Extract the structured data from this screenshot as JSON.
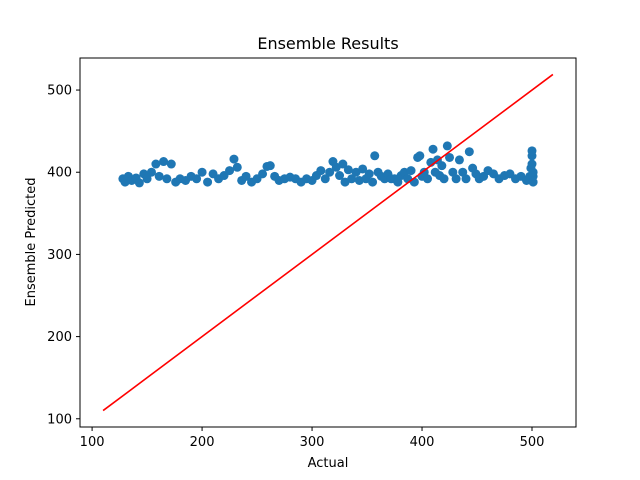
{
  "chart_data": {
    "type": "scatter",
    "title": "Ensemble Results",
    "xlabel": "Actual",
    "ylabel": "Ensemble Predicted",
    "xlim": [
      89,
      540
    ],
    "ylim": [
      90,
      539
    ],
    "xticks": [
      100,
      200,
      300,
      400,
      500
    ],
    "yticks": [
      100,
      200,
      300,
      400,
      500
    ],
    "grid": false,
    "colors": {
      "scatter": "#1f77b4",
      "line": "#ff0000"
    },
    "scatter_points": [
      [
        128,
        392
      ],
      [
        130,
        388
      ],
      [
        133,
        395
      ],
      [
        136,
        390
      ],
      [
        140,
        393
      ],
      [
        143,
        387
      ],
      [
        147,
        398
      ],
      [
        150,
        392
      ],
      [
        154,
        400
      ],
      [
        158,
        410
      ],
      [
        161,
        395
      ],
      [
        165,
        413
      ],
      [
        168,
        392
      ],
      [
        172,
        410
      ],
      [
        176,
        388
      ],
      [
        180,
        392
      ],
      [
        185,
        390
      ],
      [
        190,
        395
      ],
      [
        195,
        392
      ],
      [
        200,
        400
      ],
      [
        205,
        388
      ],
      [
        210,
        398
      ],
      [
        215,
        392
      ],
      [
        220,
        396
      ],
      [
        225,
        402
      ],
      [
        229,
        416
      ],
      [
        232,
        406
      ],
      [
        236,
        390
      ],
      [
        240,
        395
      ],
      [
        245,
        388
      ],
      [
        250,
        392
      ],
      [
        255,
        398
      ],
      [
        259,
        407
      ],
      [
        262,
        408
      ],
      [
        266,
        395
      ],
      [
        270,
        390
      ],
      [
        275,
        392
      ],
      [
        280,
        394
      ],
      [
        285,
        392
      ],
      [
        290,
        388
      ],
      [
        295,
        392
      ],
      [
        300,
        390
      ],
      [
        304,
        396
      ],
      [
        308,
        402
      ],
      [
        312,
        392
      ],
      [
        316,
        400
      ],
      [
        319,
        413
      ],
      [
        322,
        406
      ],
      [
        325,
        396
      ],
      [
        328,
        410
      ],
      [
        330,
        388
      ],
      [
        333,
        403
      ],
      [
        336,
        392
      ],
      [
        340,
        400
      ],
      [
        343,
        390
      ],
      [
        346,
        404
      ],
      [
        349,
        392
      ],
      [
        352,
        398
      ],
      [
        355,
        388
      ],
      [
        357,
        420
      ],
      [
        360,
        400
      ],
      [
        363,
        395
      ],
      [
        366,
        392
      ],
      [
        369,
        398
      ],
      [
        372,
        392
      ],
      [
        375,
        392
      ],
      [
        378,
        388
      ],
      [
        381,
        396
      ],
      [
        384,
        400
      ],
      [
        387,
        392
      ],
      [
        390,
        402
      ],
      [
        393,
        388
      ],
      [
        396,
        418
      ],
      [
        398,
        420
      ],
      [
        400,
        395
      ],
      [
        402,
        400
      ],
      [
        405,
        392
      ],
      [
        408,
        412
      ],
      [
        410,
        428
      ],
      [
        412,
        400
      ],
      [
        414,
        415
      ],
      [
        416,
        396
      ],
      [
        418,
        408
      ],
      [
        420,
        392
      ],
      [
        423,
        432
      ],
      [
        425,
        418
      ],
      [
        428,
        400
      ],
      [
        431,
        392
      ],
      [
        434,
        415
      ],
      [
        437,
        400
      ],
      [
        440,
        392
      ],
      [
        443,
        425
      ],
      [
        446,
        405
      ],
      [
        449,
        398
      ],
      [
        452,
        392
      ],
      [
        456,
        395
      ],
      [
        460,
        402
      ],
      [
        465,
        398
      ],
      [
        470,
        392
      ],
      [
        475,
        396
      ],
      [
        480,
        398
      ],
      [
        485,
        392
      ],
      [
        490,
        395
      ],
      [
        495,
        390
      ],
      [
        498,
        395
      ],
      [
        499,
        405
      ],
      [
        500,
        410
      ],
      [
        500,
        420
      ],
      [
        500,
        426
      ],
      [
        501,
        388
      ],
      [
        501,
        395
      ],
      [
        501,
        400
      ]
    ],
    "reference_line": {
      "x": [
        110,
        519
      ],
      "y": [
        110,
        519
      ]
    }
  }
}
